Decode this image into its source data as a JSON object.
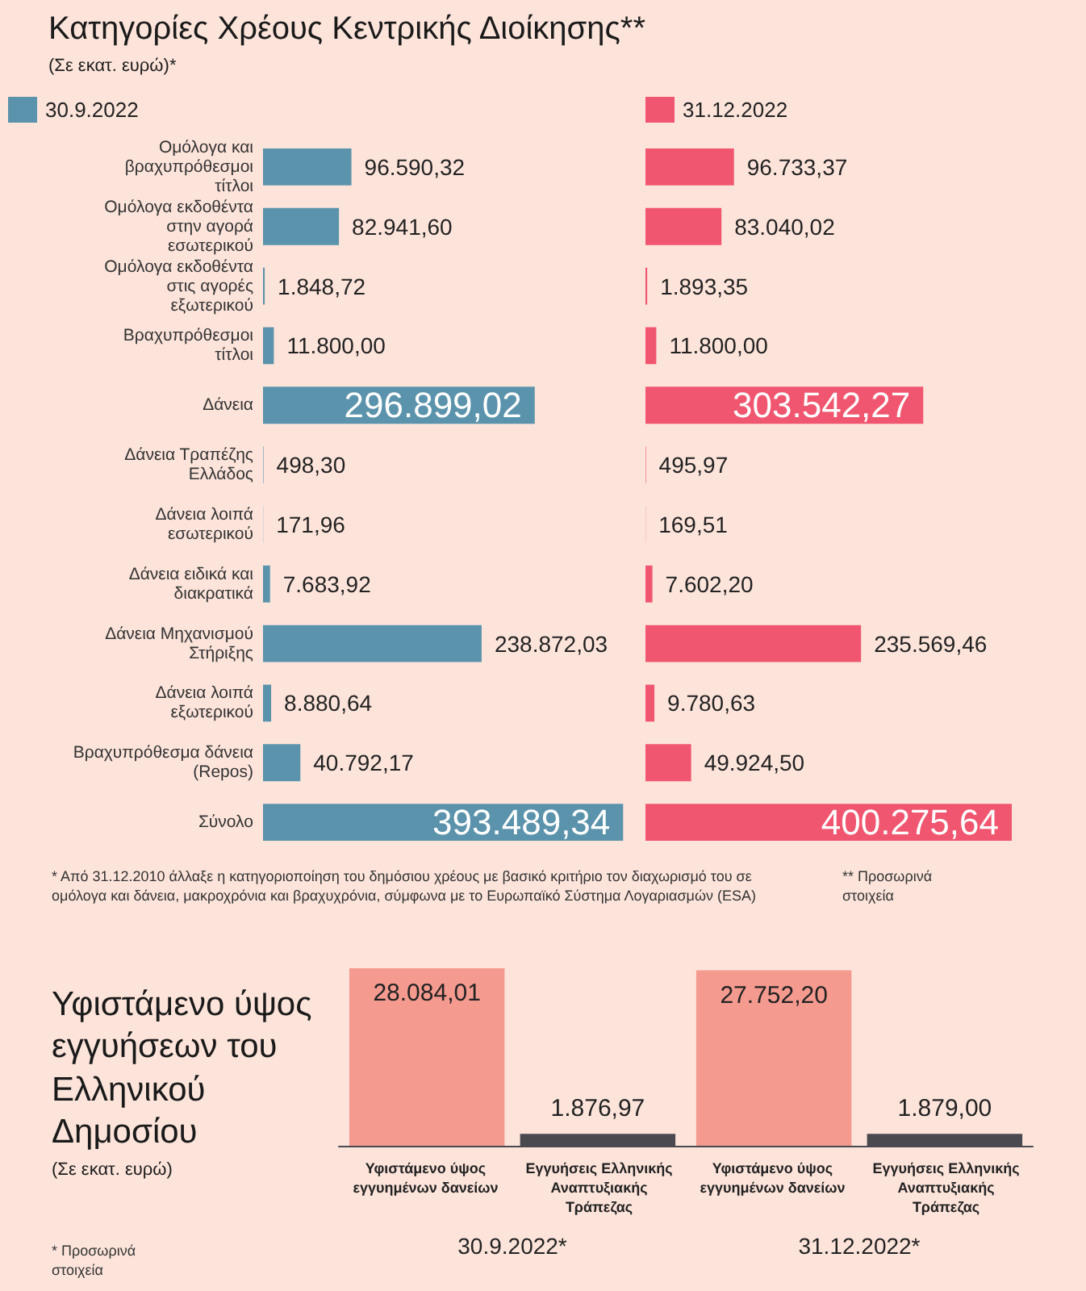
{
  "chart_data": [
    {
      "type": "bar",
      "orientation": "horizontal",
      "title": "Κατηγορίες Χρέους Κεντρικής Διοίκησης**",
      "subtitle": "(Σε εκατ. ευρώ)*",
      "categories": [
        "Ομόλογα και βραχυπρόθεσμοι τίτλοι",
        "Ομόλογα εκδοθέντα στην αγορά εσωτερικού",
        "Ομόλογα εκδοθέντα στις αγορές εξωτερικού",
        "Βραχυπρόθεσμοι τίτλοι",
        "Δάνεια",
        "Δάνεια Τραπέζης Ελλάδος",
        "Δάνεια λοιπά εσωτερικού",
        "Δάνεια ειδικά και διακρατικά",
        "Δάνεια Μηχανισμού Στήριξης",
        "Δάνεια λοιπά εξωτερικού",
        "Βραχυπρόθεσμα δάνεια (Repos)",
        "Σύνολο"
      ],
      "series": [
        {
          "name": "30.9.2022",
          "color": "#5a93ab",
          "values": [
            96590.32,
            82941.6,
            1848.72,
            11800.0,
            296899.02,
            498.3,
            171.96,
            7683.92,
            238872.03,
            8880.64,
            40792.17,
            393489.34
          ],
          "value_labels": [
            "96.590,32",
            "82.941,60",
            "1.848,72",
            "11.800,00",
            "296.899,02",
            "498,30",
            "171,96",
            "7.683,92",
            "238.872,03",
            "8.880,64",
            "40.792,17",
            "393.489,34"
          ]
        }
      ],
      "legend": "top left",
      "tick_labels": "y",
      "annotations": [
        "* Από 31.12.2010 άλλαξε η κατηγοριοποίηση του δημόσιου χρέους με βασικό κριτήριο τον διαχωρισμό του σε ομόλογα και δάνεια, μακροχρόνια και βραχυχρόνια, σύμφωνα με το Ευρωπαϊκό Σύστημα Λογαριασμών (ESA)",
        "** Προσωρινά στοιχεία"
      ]
    },
    {
      "type": "bar",
      "orientation": "horizontal",
      "categories": [
        null,
        null,
        null,
        null,
        null,
        null,
        null,
        null,
        null,
        null,
        null,
        null
      ],
      "series": [
        {
          "name": "31.12.2022",
          "color": "#f0566f",
          "values": [
            96733.37,
            83040.02,
            1893.35,
            11800.0,
            303542.27,
            495.97,
            169.51,
            7602.2,
            235569.46,
            9780.63,
            49924.5,
            400275.64
          ],
          "value_labels": [
            "96.733,37",
            "83.040,02",
            "1.893,35",
            "11.800,00",
            "303.542,27",
            "495,97",
            "169,51",
            "7.602,20",
            "235.569,46",
            "9.780,63",
            "49.924,50",
            "400.275,64"
          ]
        }
      ],
      "legend": "top left",
      "tick_labels": false
    },
    {
      "type": "bar",
      "title": "Υφιστάμενο ύψος εγγυήσεων του Ελληνικού Δημοσίου",
      "ylabel": "(Σε εκατ. ευρώ)",
      "categories": [
        "30.9.2022*",
        "31.12.2022*"
      ],
      "series": [
        {
          "name": "Υφιστάμενο ύψος εγγυημένων δανείων",
          "color": "#f49a8f",
          "values": [
            28084.01,
            27752.2
          ],
          "value_labels": [
            "28.084,01",
            "27.752,20"
          ]
        },
        {
          "name": "Εγγυήσεις Ελληνικής Αναπτυξιακής Τράπεζας",
          "color": "#4a4950",
          "values": [
            1876.97,
            1879.0
          ],
          "value_labels": [
            "1.876,97",
            "1.879,00"
          ]
        }
      ],
      "tick_labels": "x",
      "annotations": [
        "* Προσωρινά στοιχεία"
      ]
    }
  ]
}
